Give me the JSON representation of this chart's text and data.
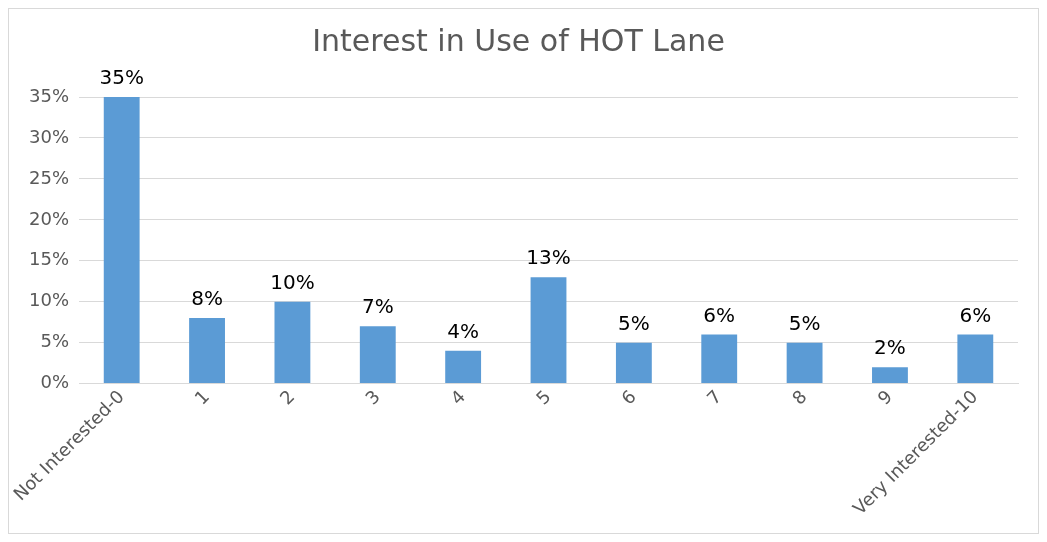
{
  "chart_data": {
    "type": "bar",
    "title": "Interest in Use of HOT Lane",
    "categories": [
      "Not Interested-0",
      "1",
      "2",
      "3",
      "4",
      "5",
      "6",
      "7",
      "8",
      "9",
      "Very Interested-10"
    ],
    "values": [
      35,
      8,
      10,
      7,
      4,
      13,
      5,
      6,
      5,
      2,
      6
    ],
    "value_labels": [
      "35%",
      "8%",
      "10%",
      "7%",
      "4%",
      "13%",
      "5%",
      "6%",
      "5%",
      "2%",
      "6%"
    ],
    "color": "#5b9bd5",
    "ylim": [
      0,
      35
    ],
    "yticks": [
      {
        "value": 0,
        "label": "0%"
      },
      {
        "value": 5,
        "label": "5%"
      },
      {
        "value": 10,
        "label": "10%"
      },
      {
        "value": 15,
        "label": "15%"
      },
      {
        "value": 20,
        "label": "20%"
      },
      {
        "value": 25,
        "label": "25%"
      },
      {
        "value": 30,
        "label": "30%"
      },
      {
        "value": 35,
        "label": "35%"
      }
    ],
    "grid": "y",
    "legend": false
  }
}
